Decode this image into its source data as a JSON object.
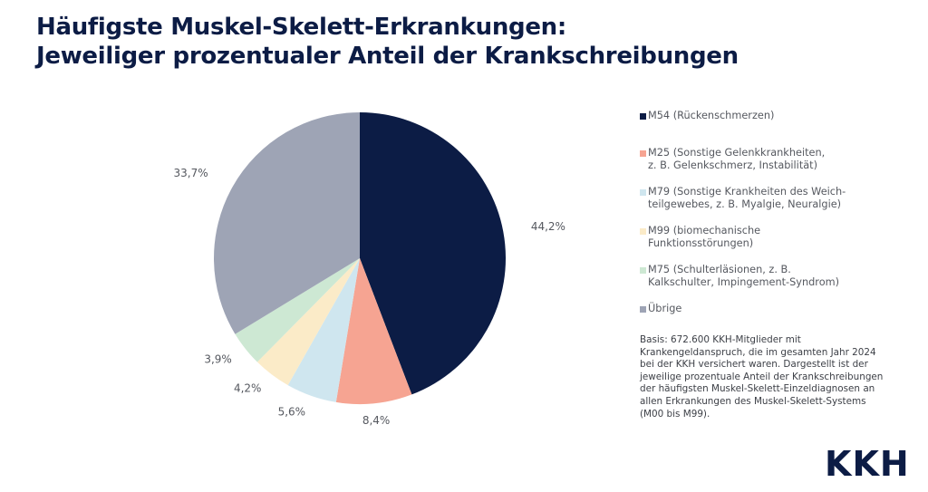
{
  "title_lines": [
    "Häufigste Muskel-Skelett-Erkrankungen:",
    "Jeweiliger prozentualer Anteil der Krankschreibungen"
  ],
  "chart_data": {
    "type": "pie",
    "start": "top",
    "direction": "clockwise",
    "categories": [
      "M54 (Rückenschmerzen)",
      "M25 (Sonstige Gelenkkrankheiten, z. B. Gelenkschmerz, Instabilität)",
      "M79 (Sonstige Krankheiten des Weich-teilgewebes, z. B. Myalgie, Neuralgie)",
      "M99 (biomechanische Funktionsstörungen)",
      "M75 (Schulterläsionen, z. B. Kalkschulter, Impingement-Syndrom)",
      "Übrige"
    ],
    "values": [
      44.2,
      8.4,
      5.6,
      4.2,
      3.9,
      33.7
    ],
    "labels": [
      "44,2%",
      "8,4%",
      "5,6%",
      "4,2%",
      "3,9%",
      "33,7%"
    ],
    "colors": [
      "#0c1c45",
      "#f6a492",
      "#cfe6ef",
      "#fbebc8",
      "#cde8d3",
      "#9ea4b5"
    ],
    "legend_position": "right"
  },
  "legend": [
    {
      "lines": [
        "M54 (Rückenschmerzen)"
      ]
    },
    {
      "lines": [
        "M25 (Sonstige Gelenkkrankheiten,",
        "z. B. Gelenkschmerz, Instabilität)"
      ]
    },
    {
      "lines": [
        "M79 (Sonstige Krankheiten des Weich-",
        "teilgewebes, z. B. Myalgie, Neuralgie)"
      ]
    },
    {
      "lines": [
        "M99 (biomechanische",
        "Funktionsstörungen)"
      ]
    },
    {
      "lines": [
        "M75 (Schulterläsionen, z. B.",
        "Kalkschulter, Impingement-Syndrom)"
      ]
    },
    {
      "lines": [
        "Übrige"
      ]
    }
  ],
  "note_lines": [
    "Basis: 672.600 KKH-Mitglieder mit",
    "Krankengeldanspruch, die im gesamten Jahr 2024",
    "bei der KKH versichert waren. Dargestellt ist der",
    "jeweilige prozentuale Anteil der Krankschreibungen",
    "der häufigsten Muskel-Skelett-Einzeldiagnosen an",
    "allen Erkrankungen des Muskel-Skelett-Systems",
    "(M00 bis M99)."
  ],
  "logo": "KKH"
}
